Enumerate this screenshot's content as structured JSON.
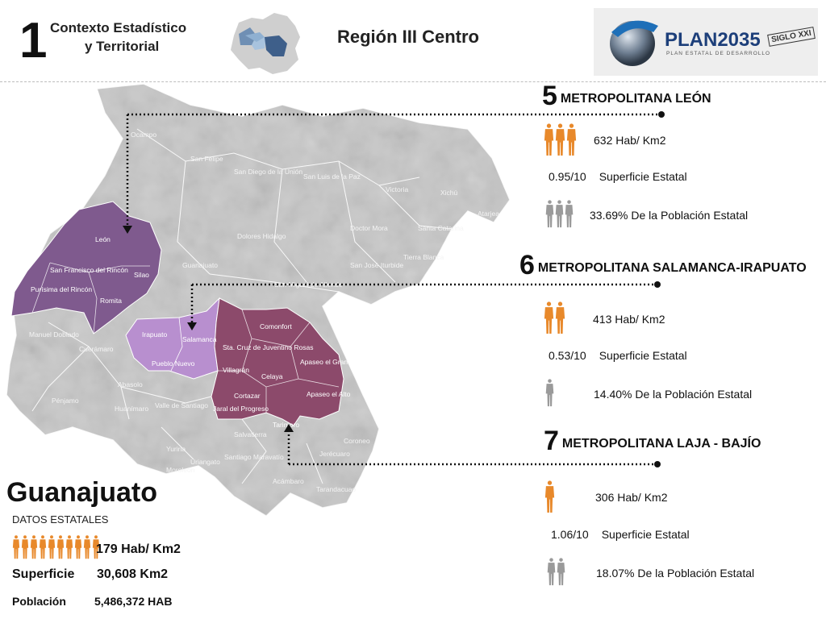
{
  "header": {
    "section_number": "1",
    "section_title_line1": "Contexto Estadístico",
    "section_title_line2": "y Territorial",
    "region_title": "Región III Centro",
    "logo_text": "PLAN2035",
    "logo_sub": "PLAN ESTATAL DE DESARROLLO",
    "logo_stamp": "SIGLO XXI"
  },
  "colors": {
    "accent_orange": "#e8892b",
    "leon_purple": "#7f5a8e",
    "salamanca_lilac": "#b88fcf",
    "laja_mauve": "#8c4a6b",
    "map_gray": "#c9c9c9",
    "person_gray": "#9a9a9a"
  },
  "metros": [
    {
      "number": "5",
      "name": "METROPOLITANA LEÓN",
      "density": "632 Hab/ Km2",
      "surface_value": "0.95/10",
      "surface_label": "Superficie  Estatal",
      "population": "33.69%  De la Población Estatal",
      "orange_icons": 3,
      "gray_icons": 3
    },
    {
      "number": "6",
      "name": "METROPOLITANA SALAMANCA-IRAPUATO",
      "density": "413 Hab/ Km2",
      "surface_value": "0.53/10",
      "surface_label": "Superficie  Estatal",
      "population": "14.40%  De la Población Estatal",
      "orange_icons": 2,
      "gray_icons": 1
    },
    {
      "number": "7",
      "name": "METROPOLITANA LAJA - BAJÍO",
      "density": "306 Hab/ Km2",
      "surface_value": "1.06/10",
      "surface_label": "Superficie  Estatal",
      "population": "18.07%  De la Población Estatal",
      "orange_icons": 1,
      "gray_icons": 2
    }
  ],
  "state": {
    "name": "Guanajuato",
    "datos_label": "DATOS  ESTATALES",
    "density": "179 Hab/ Km2",
    "surface_label": "Superficie",
    "surface_value": "30,608  Km2",
    "population_label": "Población",
    "population_value": "5,486,372  HAB",
    "orange_icons": 10
  },
  "map_labels": [
    "Ocampo",
    "San Felipe",
    "San Diego de la Unión",
    "San Luis de la Paz",
    "Victoria",
    "Xichú",
    "Atarjea",
    "Santa Catarina",
    "Doctor Mora",
    "Tierra Blanca",
    "San José Iturbide",
    "Dolores Hidalgo",
    "Guanajuato",
    "San Miguel de Allende",
    "León",
    "San Francisco del Rincón",
    "Silao",
    "Purísima del Rincón",
    "Romita",
    "Manuel Doblado",
    "Cuerámaro",
    "Irapuato",
    "Salamanca",
    "Pueblo Nuevo",
    "Abasolo",
    "Pénjamo",
    "Huanímaro",
    "Valle de Santiago",
    "Comonfort",
    "Sta. Cruz de Juventino Rosas",
    "Villagrán",
    "Celaya",
    "Apaseo el Grande",
    "Apaseo el Alto",
    "Cortazar",
    "Jaral del Progreso",
    "Tarimoro",
    "Salvatierra",
    "Yuriria",
    "Uriangato",
    "Moroleón",
    "Santiago Maravatío",
    "Acámbaro",
    "Jerécuaro",
    "Coroneo",
    "Tarandacuao"
  ]
}
